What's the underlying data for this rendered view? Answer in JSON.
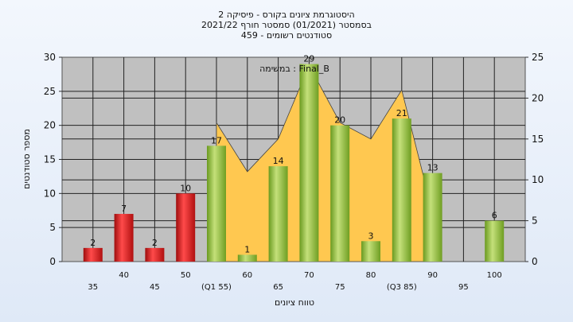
{
  "chart_data": {
    "type": "bar",
    "title_lines": [
      "היסטוגרמת ציונים בקורס - פיסיקה 2",
      "בסמסטר  (01/2021)  סמסטר חורף  2021/22",
      "סטודנטים רשומים - 459"
    ],
    "annotation": "במשימה : Final_B",
    "xlabel": "טווח ציונים",
    "ylabel": "מספר סטודנטים",
    "categories": [
      "35",
      "40",
      "45",
      "50",
      "(Q1 55)",
      "60",
      "65",
      "70",
      "75",
      "80",
      "(Q3 85)",
      "90",
      "95",
      "100"
    ],
    "series": [
      {
        "values": [
          2,
          7,
          2,
          10,
          17,
          1,
          14,
          29,
          20,
          3,
          21,
          13,
          null,
          6
        ],
        "data_labels": [
          "2",
          "7",
          "2",
          "10",
          "17",
          "1",
          "14",
          "29",
          "20",
          "3",
          "21",
          "13",
          "",
          "6"
        ],
        "failing_color": "#e02020",
        "passing_color": "#8fc03a"
      }
    ],
    "area": {
      "values": [
        null,
        null,
        null,
        null,
        17,
        11,
        15,
        24,
        17,
        15,
        21,
        6,
        null,
        null
      ],
      "color": "#ffc850"
    },
    "ylim_left": [
      0,
      30
    ],
    "yticks_left": [
      0,
      5,
      10,
      15,
      20,
      25,
      30
    ],
    "ylim_right": [
      0,
      25
    ],
    "yticks_right": [
      0,
      5,
      10,
      15,
      20,
      25
    ],
    "grid": true,
    "plot_background": "#c0c0c0"
  }
}
